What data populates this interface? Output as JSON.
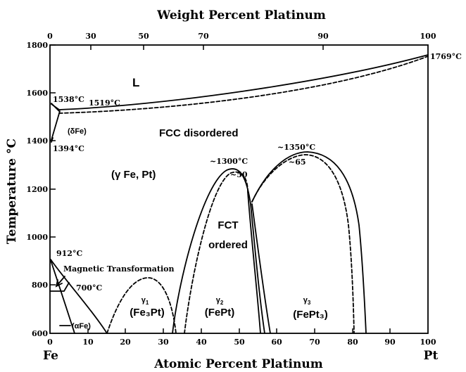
{
  "diagram": {
    "top_axis_title": "Weight Percent Platinum",
    "bottom_axis_title": "Atomic Percent Platinum",
    "y_axis_title": "Temperature °C",
    "y_ticks": [
      "1800",
      "1600",
      "1400",
      "1200",
      "1000",
      "800",
      "600"
    ],
    "x_ticks": [
      "0",
      "10",
      "20",
      "30",
      "40",
      "50",
      "60",
      "70",
      "80",
      "90",
      "100"
    ],
    "top_ticks": [
      "0",
      "30",
      "50",
      "70",
      "90",
      "100"
    ],
    "left_element": "Fe",
    "right_element": "Pt",
    "annotations": {
      "liquid": "L",
      "fe_melting": "1538°C",
      "peritectic": "1519°C",
      "pt_melting": "1769°C",
      "delta_fe": "(δFe)",
      "delta_gamma": "1394°C",
      "fcc_disordered": "FCC disordered",
      "gamma_fe_pt": "(γ Fe, Pt)",
      "fept_max": "~1300°C",
      "fept_gap": "~50",
      "fept3_max": "~1350°C",
      "fept3_gap": "~65",
      "fct_line1": "FCT",
      "fct_line2": "ordered",
      "curie_fe": "912°C",
      "magnetic": "Magnetic Transformation",
      "magnetic_temp": "700°C",
      "alpha_fe": "(αFe)",
      "gamma1": "γ",
      "gamma1_sub": "1",
      "gamma1_phase": "(Fe₃Pt)",
      "gamma2": "γ",
      "gamma2_sub": "2",
      "gamma2_phase": "(FePt)",
      "gamma3": "γ",
      "gamma3_sub": "3",
      "gamma3_phase": "(FePt₃)"
    }
  }
}
